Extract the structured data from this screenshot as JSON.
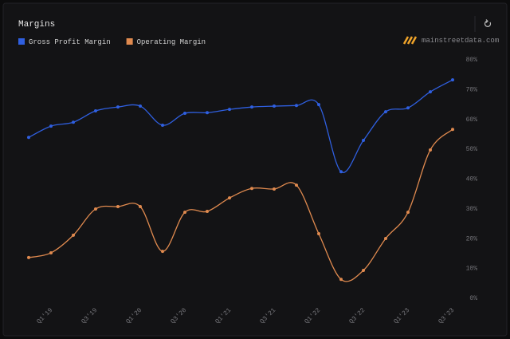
{
  "chart_data": {
    "type": "line",
    "title": "Margins",
    "source": "mainstreetdata.com",
    "categories": [
      null,
      "Q1'19",
      null,
      "Q3'19",
      null,
      "Q1'20",
      null,
      "Q3'20",
      null,
      "Q1'21",
      null,
      "Q3'21",
      null,
      "Q1'22",
      null,
      "Q3'22",
      null,
      "Q1'23",
      null,
      "Q3'23"
    ],
    "series": [
      {
        "name": "Gross Profit Margin",
        "color": "#2f5fe0",
        "values": [
          53.7,
          57.5,
          58.8,
          62.6,
          63.9,
          64.2,
          57.8,
          61.8,
          62.0,
          63.1,
          63.9,
          64.2,
          64.4,
          64.7,
          42.2,
          52.7,
          62.3,
          63.6,
          69.0,
          73.0
        ]
      },
      {
        "name": "Operating Margin",
        "color": "#e08a4f",
        "values": [
          13.4,
          15.0,
          20.9,
          29.7,
          30.5,
          30.5,
          15.5,
          28.6,
          28.9,
          33.4,
          36.6,
          36.4,
          37.7,
          21.4,
          6.1,
          9.1,
          19.8,
          28.6,
          49.5,
          56.4
        ]
      }
    ],
    "ylim": [
      0,
      80
    ],
    "yticks": [
      {
        "value": 0,
        "label": "0%"
      },
      {
        "value": 10,
        "label": "10%"
      },
      {
        "value": 20,
        "label": "20%"
      },
      {
        "value": 30,
        "label": "30%"
      },
      {
        "value": 40,
        "label": "40%"
      },
      {
        "value": 50,
        "label": "50%"
      },
      {
        "value": 60,
        "label": "60%"
      },
      {
        "value": 70,
        "label": "70%"
      },
      {
        "value": 80,
        "label": "80%"
      }
    ]
  }
}
